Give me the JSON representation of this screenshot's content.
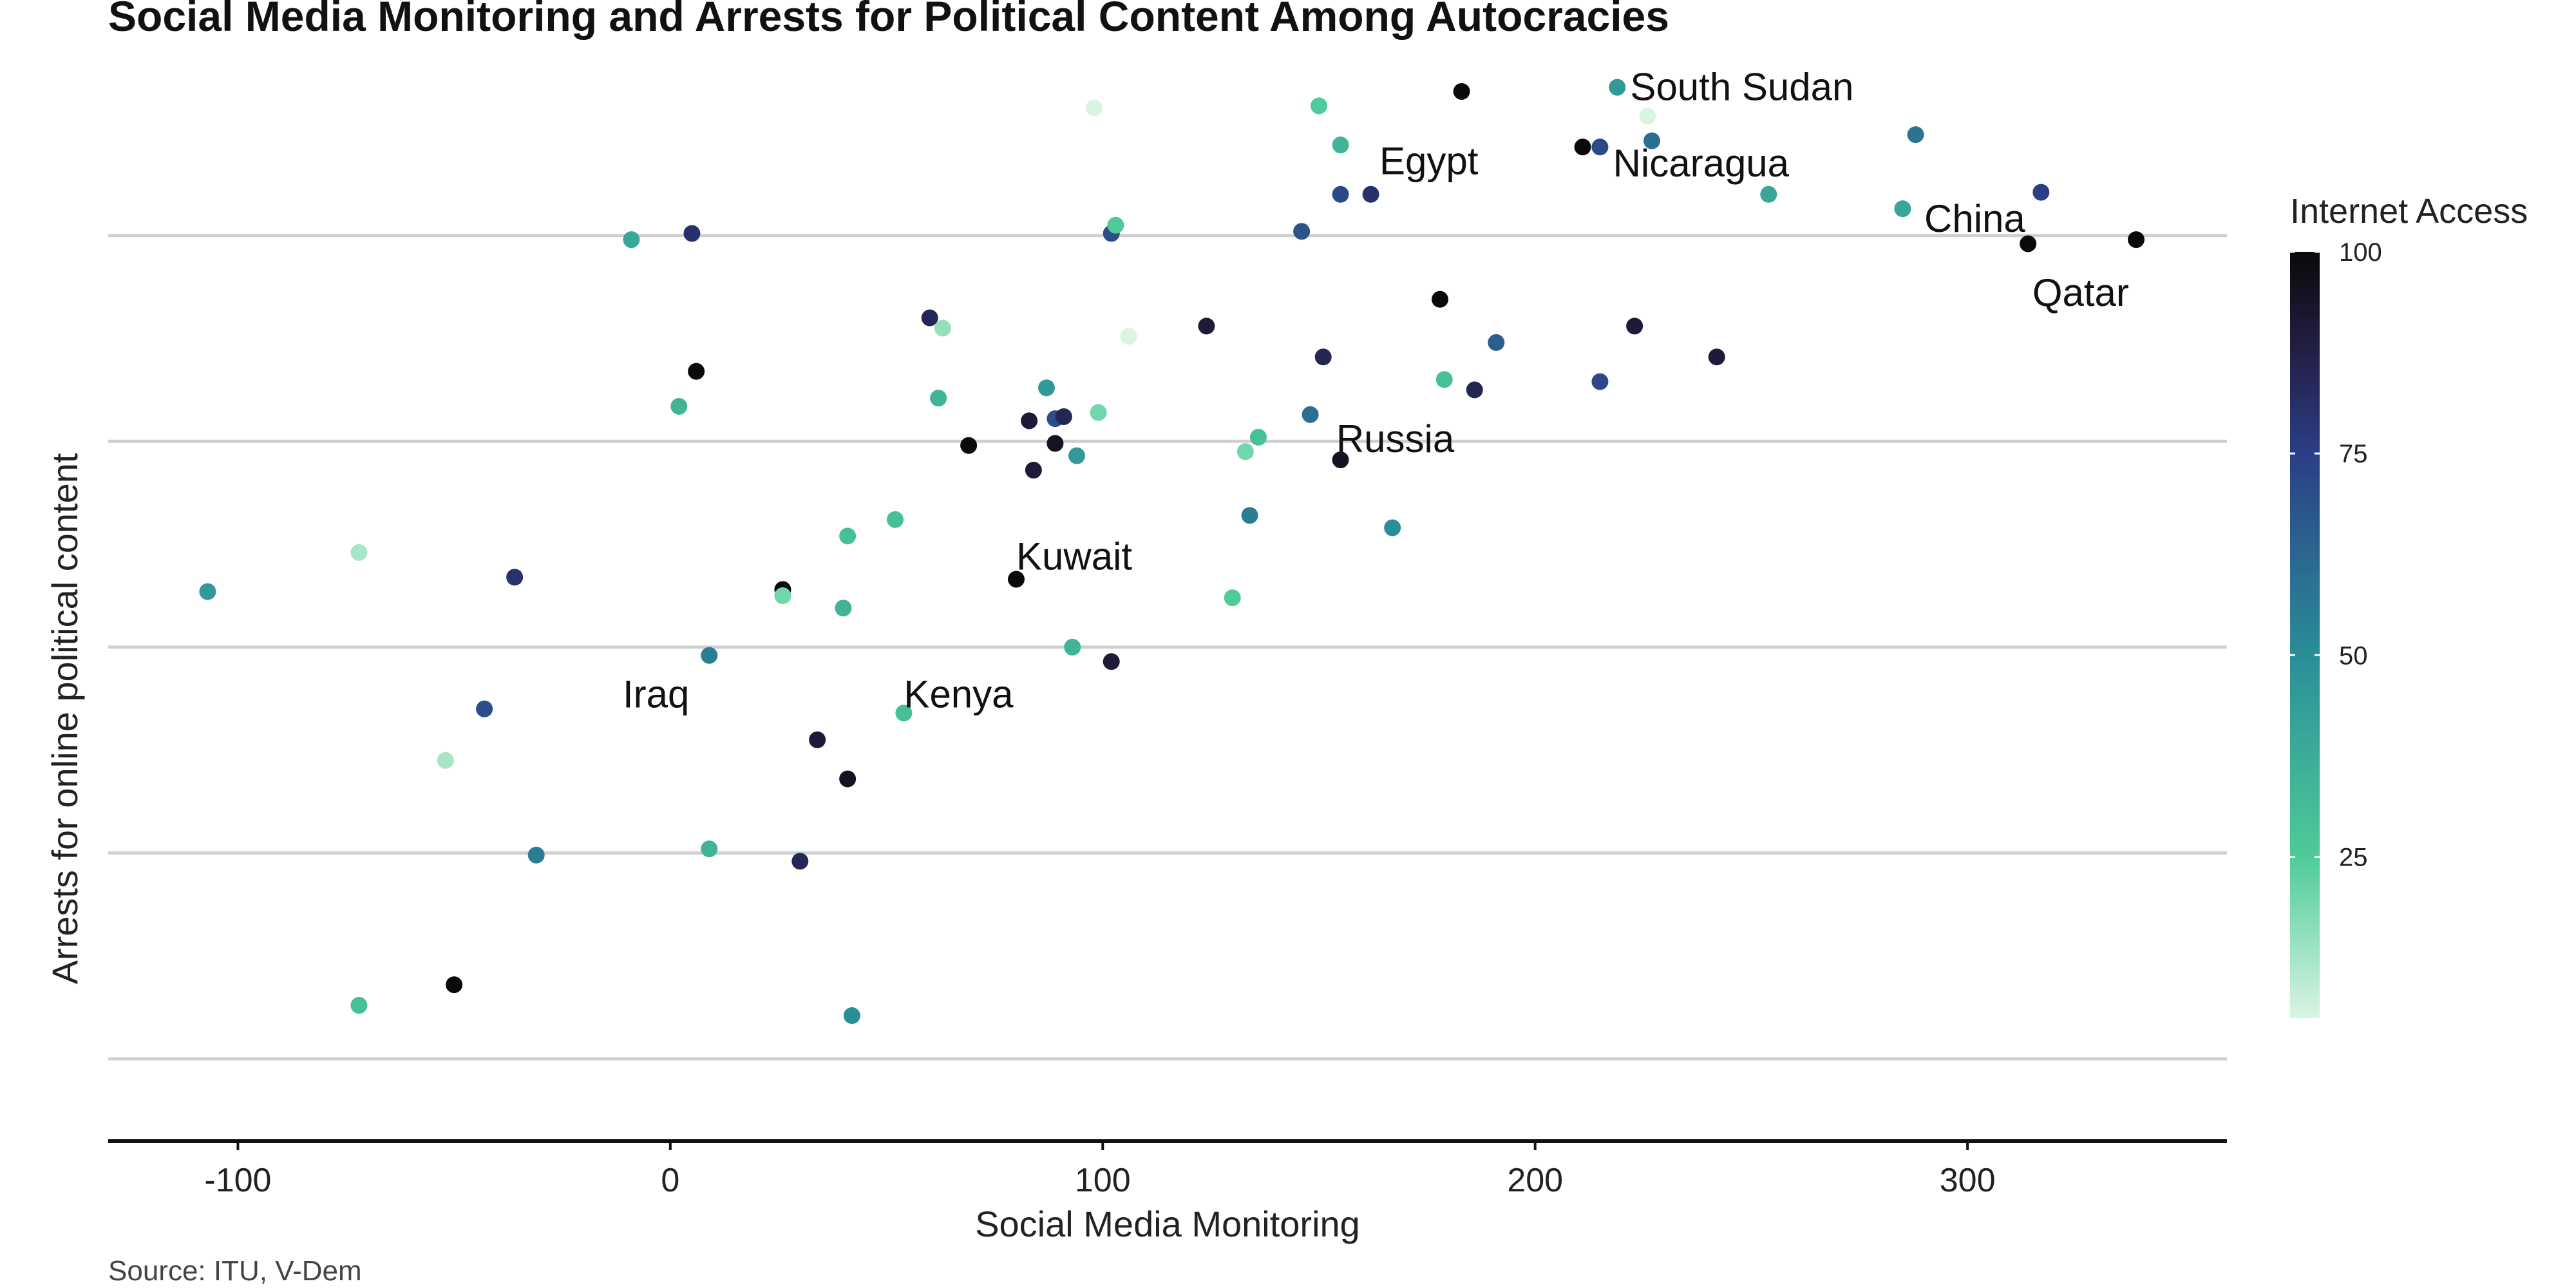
{
  "chart_data": {
    "type": "scatter",
    "title": "Social Media Monitoring and Arrests for Political Content Among Autocracies",
    "xlabel": "Social Media Monitoring",
    "ylabel": "Arrests for online political content",
    "source": "Source: ITU, V-Dem",
    "xlim": [
      -130,
      360
    ],
    "ylim": [
      -3.4,
      1.8
    ],
    "x_ticks": [
      -100,
      0,
      100,
      200,
      300
    ],
    "x_tick_labels": [
      "-100",
      "0",
      "100",
      "200",
      "300"
    ],
    "y_gridlines": [
      -3.0,
      -2.0,
      -1.0,
      0.0,
      1.0
    ],
    "y_tick_labels_shown": false,
    "grid": "horizontal",
    "color_scale": {
      "title": "Internet Access",
      "min": 5,
      "max": 100,
      "ticks": [
        25,
        50,
        75,
        100
      ],
      "tick_labels": [
        "25",
        "50",
        "75",
        "100"
      ],
      "stops": [
        {
          "value": 5,
          "color": "#d9f5e2"
        },
        {
          "value": 25,
          "color": "#4ecb98"
        },
        {
          "value": 50,
          "color": "#2a8e98"
        },
        {
          "value": 75,
          "color": "#2b3e86"
        },
        {
          "value": 90,
          "color": "#201a3a"
        },
        {
          "value": 100,
          "color": "#0a0a0a"
        }
      ]
    },
    "legend_placement": "right",
    "points": [
      {
        "x": 183,
        "y": 1.7,
        "access": 100
      },
      {
        "x": 219,
        "y": 1.72,
        "access": 45,
        "label": "South Sudan"
      },
      {
        "x": 226,
        "y": 1.58,
        "access": 5
      },
      {
        "x": 150,
        "y": 1.63,
        "access": 25
      },
      {
        "x": 98,
        "y": 1.62,
        "access": 5
      },
      {
        "x": 288,
        "y": 1.49,
        "access": 58
      },
      {
        "x": 211,
        "y": 1.43,
        "access": 100
      },
      {
        "x": 215,
        "y": 1.43,
        "access": 72
      },
      {
        "x": 227,
        "y": 1.46,
        "access": 60
      },
      {
        "x": 155,
        "y": 1.44,
        "access": 35
      },
      {
        "x": 155,
        "y": 1.2,
        "access": 72
      },
      {
        "x": 162,
        "y": 1.2,
        "access": 80,
        "label": "Egypt"
      },
      {
        "x": 254,
        "y": 1.2,
        "access": 40,
        "label": "Nicaragua"
      },
      {
        "x": 317,
        "y": 1.21,
        "access": 75
      },
      {
        "x": 285,
        "y": 1.13,
        "access": 40,
        "label": "China"
      },
      {
        "x": 314,
        "y": 0.96,
        "access": 100,
        "label": "Qatar"
      },
      {
        "x": 339,
        "y": 0.98,
        "access": 100
      },
      {
        "x": 102,
        "y": 1.01,
        "access": 70
      },
      {
        "x": 103,
        "y": 1.05,
        "access": 25
      },
      {
        "x": 146,
        "y": 1.02,
        "access": 68
      },
      {
        "x": 5,
        "y": 1.01,
        "access": 80
      },
      {
        "x": -9,
        "y": 0.98,
        "access": 40
      },
      {
        "x": 60,
        "y": 0.6,
        "access": 85
      },
      {
        "x": 63,
        "y": 0.55,
        "access": 15
      },
      {
        "x": 106,
        "y": 0.51,
        "access": 5
      },
      {
        "x": 124,
        "y": 0.56,
        "access": 90
      },
      {
        "x": 178,
        "y": 0.69,
        "access": 100
      },
      {
        "x": 223,
        "y": 0.56,
        "access": 90
      },
      {
        "x": 191,
        "y": 0.48,
        "access": 65
      },
      {
        "x": 151,
        "y": 0.41,
        "access": 85
      },
      {
        "x": 242,
        "y": 0.41,
        "access": 90
      },
      {
        "x": 179,
        "y": 0.3,
        "access": 30
      },
      {
        "x": 186,
        "y": 0.25,
        "access": 85
      },
      {
        "x": 215,
        "y": 0.29,
        "access": 72
      },
      {
        "x": 6,
        "y": 0.34,
        "access": 100
      },
      {
        "x": 2,
        "y": 0.17,
        "access": 35
      },
      {
        "x": 62,
        "y": 0.21,
        "access": 35
      },
      {
        "x": 87,
        "y": 0.26,
        "access": 45
      },
      {
        "x": 83,
        "y": 0.1,
        "access": 90
      },
      {
        "x": 89,
        "y": 0.11,
        "access": 70
      },
      {
        "x": 91,
        "y": 0.12,
        "access": 85
      },
      {
        "x": 99,
        "y": 0.14,
        "access": 20
      },
      {
        "x": 69,
        "y": -0.02,
        "access": 100
      },
      {
        "x": 89,
        "y": -0.01,
        "access": 95
      },
      {
        "x": 84,
        "y": -0.14,
        "access": 90
      },
      {
        "x": 94,
        "y": -0.07,
        "access": 45
      },
      {
        "x": 136,
        "y": 0.02,
        "access": 30
      },
      {
        "x": 133,
        "y": -0.05,
        "access": 20
      },
      {
        "x": 148,
        "y": 0.13,
        "access": 60
      },
      {
        "x": 155,
        "y": -0.09,
        "access": 95,
        "label": "Russia"
      },
      {
        "x": 134,
        "y": -0.36,
        "access": 55
      },
      {
        "x": 167,
        "y": -0.42,
        "access": 50
      },
      {
        "x": 52,
        "y": -0.38,
        "access": 30
      },
      {
        "x": 41,
        "y": -0.46,
        "access": 30
      },
      {
        "x": 80,
        "y": -0.67,
        "access": 100,
        "label": "Kuwait"
      },
      {
        "x": 26,
        "y": -0.72,
        "access": 100
      },
      {
        "x": 26,
        "y": -0.75,
        "access": 20
      },
      {
        "x": 40,
        "y": -0.81,
        "access": 35
      },
      {
        "x": 130,
        "y": -0.76,
        "access": 25
      },
      {
        "x": -107,
        "y": -0.73,
        "access": 45
      },
      {
        "x": -72,
        "y": -0.54,
        "access": 12
      },
      {
        "x": -36,
        "y": -0.66,
        "access": 80
      },
      {
        "x": 9,
        "y": -1.04,
        "access": 55,
        "label": "Iraq"
      },
      {
        "x": 93,
        "y": -1.0,
        "access": 35
      },
      {
        "x": 102,
        "y": -1.07,
        "access": 90
      },
      {
        "x": 54,
        "y": -1.32,
        "access": 30,
        "label": "Kenya"
      },
      {
        "x": -43,
        "y": -1.3,
        "access": 70
      },
      {
        "x": 34,
        "y": -1.45,
        "access": 90
      },
      {
        "x": -52,
        "y": -1.55,
        "access": 12
      },
      {
        "x": 41,
        "y": -1.64,
        "access": 95
      },
      {
        "x": -31,
        "y": -2.01,
        "access": 55
      },
      {
        "x": 9,
        "y": -1.98,
        "access": 35
      },
      {
        "x": 30,
        "y": -2.04,
        "access": 85
      },
      {
        "x": -50,
        "y": -2.64,
        "access": 100
      },
      {
        "x": -72,
        "y": -2.74,
        "access": 30
      },
      {
        "x": 42,
        "y": -2.79,
        "access": 50
      }
    ],
    "annotations": [
      {
        "text": "South Sudan",
        "x": 222,
        "y": 1.72
      },
      {
        "text": "Egypt",
        "x": 164,
        "y": 1.36
      },
      {
        "text": "Nicaragua",
        "x": 218,
        "y": 1.35
      },
      {
        "text": "China",
        "x": 290,
        "y": 1.08
      },
      {
        "text": "Qatar",
        "x": 315,
        "y": 0.72
      },
      {
        "text": "Russia",
        "x": 154,
        "y": 0.01
      },
      {
        "text": "Kuwait",
        "x": 80,
        "y": -0.56
      },
      {
        "text": "Iraq",
        "x": -11,
        "y": -1.23
      },
      {
        "text": "Kenya",
        "x": 54,
        "y": -1.23
      }
    ]
  }
}
